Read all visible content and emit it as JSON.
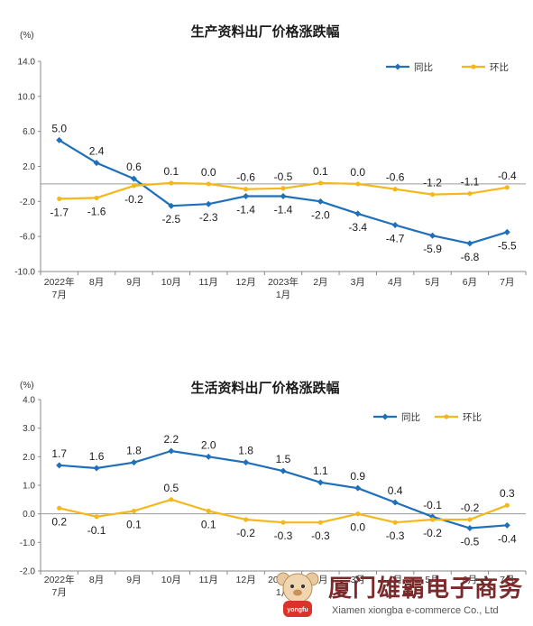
{
  "chart_data": [
    {
      "type": "line",
      "title": "生产资料出厂价格涨跌幅",
      "unit": "(%)",
      "ylim": [
        -10.0,
        14.0
      ],
      "yticks": [
        "14.0",
        "10.0",
        "6.0",
        "2.0",
        "-2.0",
        "-6.0",
        "-10.0"
      ],
      "categories": [
        [
          "2022年",
          "7月"
        ],
        [
          "8月"
        ],
        [
          "9月"
        ],
        [
          "10月"
        ],
        [
          "11月"
        ],
        [
          "12月"
        ],
        [
          "2023年",
          "1月"
        ],
        [
          "2月"
        ],
        [
          "3月"
        ],
        [
          "4月"
        ],
        [
          "5月"
        ],
        [
          "6月"
        ],
        [
          "7月"
        ]
      ],
      "legend_position": "top-right",
      "grid": false,
      "series": [
        {
          "name": "同比",
          "color": "#1f6fba",
          "values": [
            5.0,
            2.4,
            0.6,
            -2.5,
            -2.3,
            -1.4,
            -1.4,
            -2.0,
            -3.4,
            -4.7,
            -5.9,
            -6.8,
            -5.5
          ],
          "labels": [
            "5.0",
            "2.4",
            "0.6",
            "-2.5",
            "-2.3",
            "-1.4",
            "-1.4",
            "-2.0",
            "-3.4",
            "-4.7",
            "-5.9",
            "-6.8",
            "-5.5"
          ]
        },
        {
          "name": "环比",
          "color": "#f5b81c",
          "values": [
            -1.7,
            -1.6,
            -0.2,
            0.1,
            0.0,
            -0.6,
            -0.5,
            0.1,
            0.0,
            -0.6,
            -1.2,
            -1.1,
            -0.4
          ],
          "labels": [
            "-1.7",
            "-1.6",
            "-0.2",
            "0.1",
            "0.0",
            "-0.6",
            "-0.5",
            "0.1",
            "0.0",
            "-0.6",
            "-1.2",
            "-1.1",
            "-0.4"
          ]
        }
      ]
    },
    {
      "type": "line",
      "title": "生活资料出厂价格涨跌幅",
      "unit": "(%)",
      "ylim": [
        -2.0,
        4.0
      ],
      "yticks": [
        "4.0",
        "3.0",
        "2.0",
        "1.0",
        "0.0",
        "-1.0",
        "-2.0"
      ],
      "categories": [
        [
          "2022年",
          "7月"
        ],
        [
          "8月"
        ],
        [
          "9月"
        ],
        [
          "10月"
        ],
        [
          "11月"
        ],
        [
          "12月"
        ],
        [
          "2023年",
          "1月"
        ],
        [
          "2月"
        ],
        [
          "3月"
        ],
        [
          "4月"
        ],
        [
          "5月"
        ],
        [
          "6月"
        ],
        [
          "7月"
        ]
      ],
      "legend_position": "top-right",
      "grid": false,
      "series": [
        {
          "name": "同比",
          "color": "#1f6fba",
          "values": [
            1.7,
            1.6,
            1.8,
            2.2,
            2.0,
            1.8,
            1.5,
            1.1,
            0.9,
            0.4,
            -0.1,
            -0.5,
            -0.4
          ],
          "labels": [
            "1.7",
            "1.6",
            "1.8",
            "2.2",
            "2.0",
            "1.8",
            "1.5",
            "1.1",
            "0.9",
            "0.4",
            "-0.1",
            "-0.5",
            "-0.4"
          ]
        },
        {
          "name": "环比",
          "color": "#f5b81c",
          "values": [
            0.2,
            -0.1,
            0.1,
            0.5,
            0.1,
            -0.2,
            -0.3,
            -0.3,
            0.0,
            -0.3,
            -0.2,
            -0.2,
            0.3
          ],
          "labels": [
            "0.2",
            "-0.1",
            "0.1",
            "0.5",
            "0.1",
            "-0.2",
            "-0.3",
            "-0.3",
            "0.0",
            "-0.3",
            "-0.2",
            "-0.2",
            "0.3"
          ]
        }
      ]
    }
  ],
  "watermark": {
    "brand_cn": "厦门雄霸电子商务",
    "brand_en": "Xiamen xiongba e-commerce Co., Ltd",
    "badge": "yongfu",
    "color": "#7a2a2a"
  }
}
